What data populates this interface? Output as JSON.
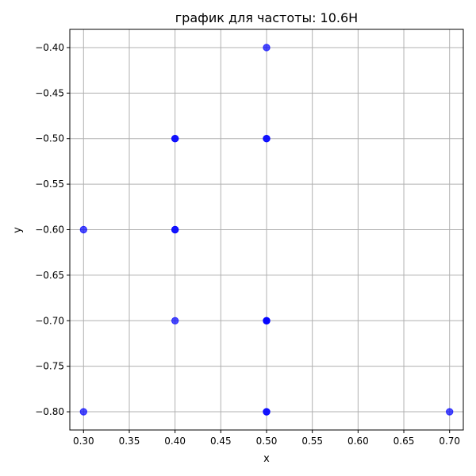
{
  "chart_data": {
    "type": "scatter",
    "title": "график для частоты: 10.6Н",
    "xlabel": "x",
    "ylabel": "y",
    "xlim": [
      0.285,
      0.715
    ],
    "ylim": [
      -0.82,
      -0.38
    ],
    "xticks": [
      0.3,
      0.35,
      0.4,
      0.45,
      0.5,
      0.55,
      0.6,
      0.65,
      0.7
    ],
    "xtick_labels": [
      "0.30",
      "0.35",
      "0.40",
      "0.45",
      "0.50",
      "0.55",
      "0.60",
      "0.65",
      "0.70"
    ],
    "yticks": [
      -0.4,
      -0.45,
      -0.5,
      -0.55,
      -0.6,
      -0.65,
      -0.7,
      -0.75,
      -0.8
    ],
    "ytick_labels": [
      "−0.40",
      "−0.45",
      "−0.50",
      "−0.55",
      "−0.60",
      "−0.65",
      "−0.70",
      "−0.75",
      "−0.80"
    ],
    "grid": true,
    "legend": "none",
    "series": [
      {
        "color": "#0000ff",
        "points": [
          {
            "x": 0.5,
            "y": -0.4
          },
          {
            "x": 0.4,
            "y": -0.5
          },
          {
            "x": 0.4,
            "y": -0.5
          },
          {
            "x": 0.5,
            "y": -0.5
          },
          {
            "x": 0.5,
            "y": -0.5
          },
          {
            "x": 0.3,
            "y": -0.6
          },
          {
            "x": 0.4,
            "y": -0.6
          },
          {
            "x": 0.4,
            "y": -0.6
          },
          {
            "x": 0.4,
            "y": -0.7
          },
          {
            "x": 0.5,
            "y": -0.7
          },
          {
            "x": 0.5,
            "y": -0.7
          },
          {
            "x": 0.5,
            "y": -0.7
          },
          {
            "x": 0.3,
            "y": -0.8
          },
          {
            "x": 0.5,
            "y": -0.8
          },
          {
            "x": 0.5,
            "y": -0.8
          },
          {
            "x": 0.7,
            "y": -0.8
          }
        ]
      }
    ]
  }
}
